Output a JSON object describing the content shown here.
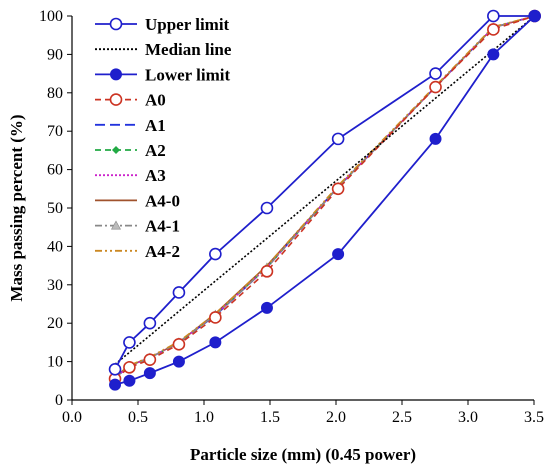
{
  "chart_data": {
    "type": "line",
    "xlabel": "Particle size (mm) (0.45 power)",
    "ylabel": "Mass passing percent (%)",
    "xlim": [
      0.0,
      3.5
    ],
    "ylim": [
      0,
      100
    ],
    "x_ticks": [
      "0.0",
      "0.5",
      "1.0",
      "1.5",
      "2.0",
      "2.5",
      "3.0",
      "3.5"
    ],
    "y_ticks": [
      "0",
      "10",
      "20",
      "30",
      "40",
      "50",
      "60",
      "70",
      "80",
      "90",
      "100"
    ],
    "grid": false,
    "legend_position": "top-left",
    "series": [
      {
        "name": "Upper limit",
        "color": "#1f1fcc",
        "line": "solid",
        "marker": "open-circle",
        "x": [
          0.326,
          0.435,
          0.59,
          0.81,
          1.086,
          1.477,
          2.016,
          2.754,
          3.192,
          3.505
        ],
        "y": [
          8,
          15,
          20,
          28,
          38,
          50,
          68,
          85,
          100,
          100
        ]
      },
      {
        "name": "Median line",
        "color": "#000000",
        "line": "dotted",
        "marker": "none",
        "x": [
          0.326,
          0.435,
          0.59,
          0.81,
          1.086,
          1.477,
          2.016,
          2.754,
          3.192,
          3.505
        ],
        "y": [
          9.3,
          12.4,
          16.8,
          23.1,
          31.0,
          42.1,
          57.5,
          78.6,
          91.1,
          100
        ]
      },
      {
        "name": "Lower limit",
        "color": "#1f1fcc",
        "line": "solid",
        "marker": "filled-circle",
        "x": [
          0.326,
          0.435,
          0.59,
          0.81,
          1.086,
          1.477,
          2.016,
          2.754,
          3.192,
          3.505
        ],
        "y": [
          4,
          5,
          7,
          10,
          15,
          24,
          38,
          68,
          90,
          100
        ]
      },
      {
        "name": "A0",
        "color": "#cc3322",
        "line": "dashed",
        "marker": "open-circle",
        "x": [
          0.326,
          0.435,
          0.59,
          0.81,
          1.086,
          1.477,
          2.016,
          2.754,
          3.192,
          3.505
        ],
        "y": [
          5.5,
          8.5,
          10.5,
          14.5,
          21.5,
          33.5,
          55.0,
          81.5,
          96.5,
          100
        ]
      },
      {
        "name": "A1",
        "color": "#2233dd",
        "line": "longdash",
        "marker": "none",
        "x": [
          0.326,
          0.435,
          0.59,
          0.81,
          1.086,
          1.477,
          2.016,
          2.754,
          3.192,
          3.505
        ],
        "y": [
          5.8,
          8.8,
          11.0,
          15.0,
          22.0,
          34.5,
          55.5,
          81.5,
          97.0,
          100
        ]
      },
      {
        "name": "A2",
        "color": "#22aa44",
        "line": "dashed",
        "marker": "diamond",
        "x": [
          0.326,
          0.435,
          0.59,
          0.81,
          1.086,
          1.477,
          2.016,
          2.754,
          3.192,
          3.505
        ],
        "y": [
          5.8,
          8.8,
          11.0,
          15.0,
          22.2,
          34.5,
          55.5,
          81.5,
          97.0,
          100
        ]
      },
      {
        "name": "A3",
        "color": "#cc22cc",
        "line": "dotted",
        "marker": "none",
        "x": [
          0.326,
          0.435,
          0.59,
          0.81,
          1.086,
          1.477,
          2.016,
          2.754,
          3.192,
          3.505
        ],
        "y": [
          5.8,
          8.8,
          11.0,
          15.0,
          22.2,
          34.5,
          55.5,
          81.5,
          97.0,
          100
        ]
      },
      {
        "name": "A4-0",
        "color": "#a0522d",
        "line": "solid",
        "marker": "none",
        "x": [
          0.326,
          0.435,
          0.59,
          0.81,
          1.086,
          1.477,
          2.016,
          2.754,
          3.192,
          3.505
        ],
        "y": [
          6.0,
          9.0,
          11.0,
          15.0,
          22.5,
          35.0,
          55.5,
          81.5,
          97.0,
          100
        ]
      },
      {
        "name": "A4-1",
        "color": "#888888",
        "line": "dashdot",
        "marker": "triangle",
        "x": [
          0.326,
          0.435,
          0.59,
          0.81,
          1.086,
          1.477,
          2.016,
          2.754,
          3.192,
          3.505
        ],
        "y": [
          5.8,
          8.8,
          11.0,
          15.0,
          22.2,
          34.5,
          55.5,
          81.5,
          97.0,
          100
        ]
      },
      {
        "name": "A4-2",
        "color": "#cc8822",
        "line": "dashdotdot",
        "marker": "none",
        "x": [
          0.326,
          0.435,
          0.59,
          0.81,
          1.086,
          1.477,
          2.016,
          2.754,
          3.192,
          3.505
        ],
        "y": [
          6.0,
          9.0,
          11.2,
          15.2,
          22.5,
          35.0,
          55.8,
          81.8,
          97.2,
          100
        ]
      }
    ]
  }
}
